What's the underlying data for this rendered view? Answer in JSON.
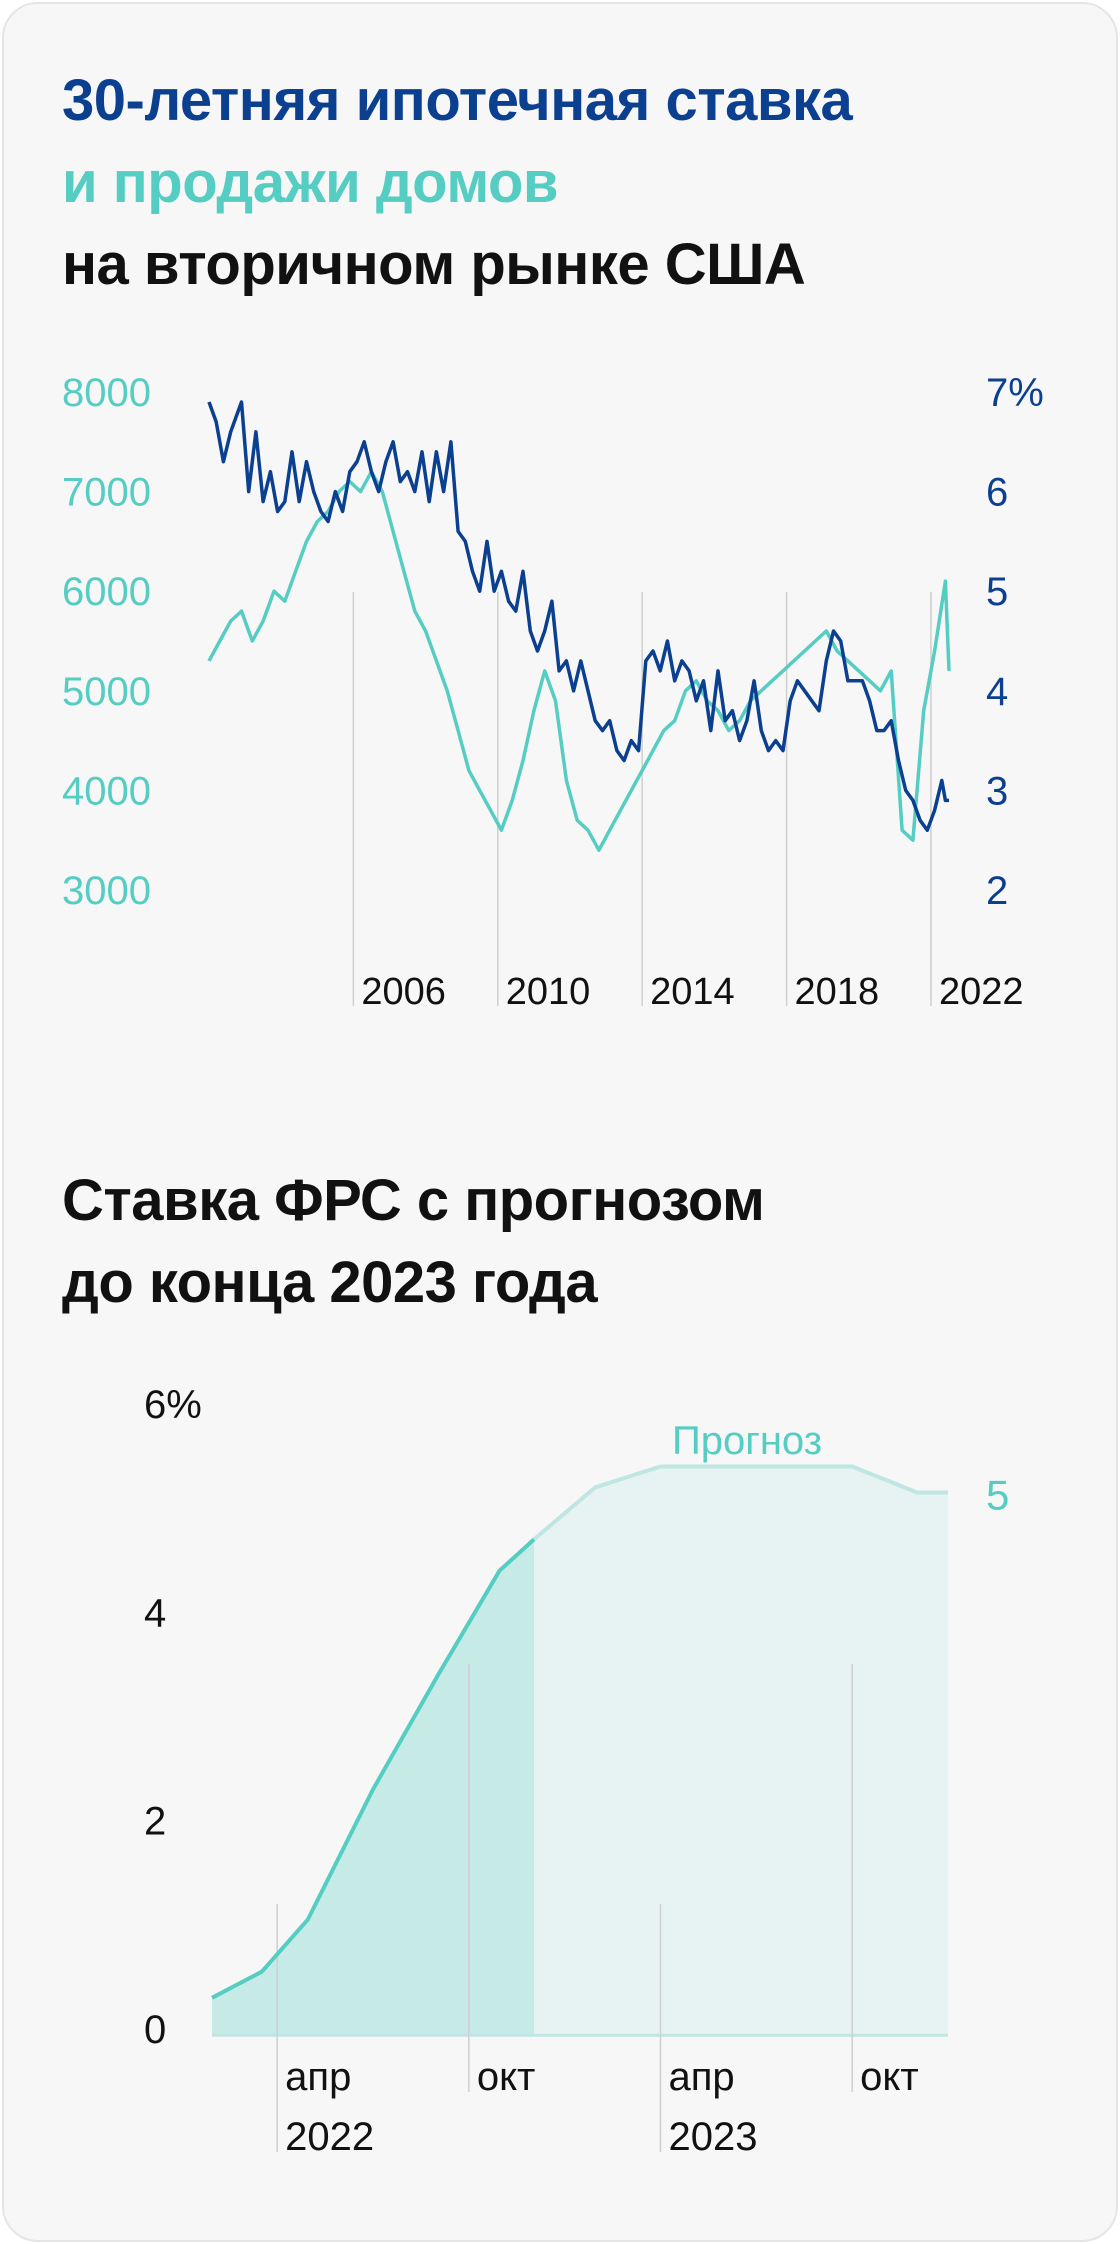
{
  "colors": {
    "card_bg": "#f7f7f7",
    "navy": "#0b3f8f",
    "teal": "#55cdc3",
    "teal_fill_actual": "#c6ebe7",
    "teal_fill_forecast": "#e6f3f2",
    "teal_line_forecast": "#bfe6e2",
    "black": "#111111",
    "grid": "#cfcfcf"
  },
  "chart1": {
    "title_line1": "30-летняя ипотечная ставка",
    "title_line2": "и продажи домов",
    "title_line3": "на вторичном рынке США"
  },
  "chart2": {
    "title_line1": "Ставка ФРС с прогнозом",
    "title_line2": "до конца 2023 года",
    "forecast_label": "Прогноз",
    "forecast_end_value_label": "5"
  },
  "chart_data": [
    {
      "type": "line",
      "title": "30-летняя ипотечная ставка и продажи домов на вторичном рынке США",
      "x_ticks": [
        "2006",
        "2010",
        "2014",
        "2018",
        "2022"
      ],
      "x_tick_values": [
        2005,
        2009,
        2013,
        2017,
        2021
      ],
      "xlim": [
        2001.0,
        2021.5
      ],
      "y_left_label": "",
      "y_left_ticks": [
        "8000",
        "7000",
        "6000",
        "5000",
        "4000",
        "3000"
      ],
      "y_left_tick_values": [
        8000,
        7000,
        6000,
        5000,
        4000,
        3000
      ],
      "y_left_lim": [
        3000,
        8000
      ],
      "y_right_ticks": [
        "7%",
        "6",
        "5",
        "4",
        "3",
        "2"
      ],
      "y_right_tick_values": [
        7,
        6,
        5,
        4,
        3,
        2
      ],
      "y_right_lim": [
        2,
        7
      ],
      "series": [
        {
          "name": "30-летняя ипотечная ставка",
          "axis": "right",
          "x": [
            2001.0,
            2001.2,
            2001.4,
            2001.6,
            2001.9,
            2002.1,
            2002.3,
            2002.5,
            2002.7,
            2002.9,
            2003.1,
            2003.3,
            2003.5,
            2003.7,
            2003.9,
            2004.1,
            2004.3,
            2004.5,
            2004.7,
            2004.9,
            2005.1,
            2005.3,
            2005.5,
            2005.7,
            2005.9,
            2006.1,
            2006.3,
            2006.5,
            2006.7,
            2006.9,
            2007.1,
            2007.3,
            2007.5,
            2007.7,
            2007.9,
            2008.1,
            2008.3,
            2008.5,
            2008.7,
            2008.9,
            2009.1,
            2009.3,
            2009.5,
            2009.7,
            2009.9,
            2010.1,
            2010.3,
            2010.5,
            2010.7,
            2010.9,
            2011.1,
            2011.3,
            2011.5,
            2011.7,
            2011.9,
            2012.1,
            2012.3,
            2012.5,
            2012.7,
            2012.9,
            2013.1,
            2013.3,
            2013.5,
            2013.7,
            2013.9,
            2014.1,
            2014.3,
            2014.5,
            2014.7,
            2014.9,
            2015.1,
            2015.3,
            2015.5,
            2015.7,
            2015.9,
            2016.1,
            2016.3,
            2016.5,
            2016.7,
            2016.9,
            2017.1,
            2017.3,
            2017.5,
            2017.7,
            2017.9,
            2018.1,
            2018.3,
            2018.5,
            2018.7,
            2018.9,
            2019.1,
            2019.3,
            2019.5,
            2019.7,
            2019.9,
            2020.1,
            2020.3,
            2020.5,
            2020.7,
            2020.9,
            2021.1,
            2021.3,
            2021.4,
            2021.5
          ],
          "values": [
            6.9,
            6.7,
            6.3,
            6.6,
            6.9,
            6.0,
            6.6,
            5.9,
            6.2,
            5.8,
            5.9,
            6.4,
            5.9,
            6.3,
            6.0,
            5.8,
            5.7,
            6.0,
            5.8,
            6.2,
            6.3,
            6.5,
            6.2,
            6.0,
            6.3,
            6.5,
            6.1,
            6.2,
            6.0,
            6.4,
            5.9,
            6.4,
            6.0,
            6.5,
            5.6,
            5.5,
            5.2,
            5.0,
            5.5,
            5.0,
            5.2,
            4.9,
            4.8,
            5.2,
            4.6,
            4.4,
            4.6,
            4.9,
            4.2,
            4.3,
            4.0,
            4.3,
            4.0,
            3.7,
            3.6,
            3.7,
            3.4,
            3.3,
            3.5,
            3.4,
            4.3,
            4.4,
            4.2,
            4.5,
            4.1,
            4.3,
            4.2,
            3.9,
            4.1,
            3.6,
            4.2,
            3.7,
            3.8,
            3.5,
            3.7,
            4.1,
            3.6,
            3.4,
            3.5,
            3.4,
            3.9,
            4.1,
            4.0,
            3.9,
            3.8,
            4.3,
            4.6,
            4.5,
            4.1,
            4.1,
            4.1,
            3.9,
            3.6,
            3.6,
            3.7,
            3.3,
            3.0,
            2.9,
            2.7,
            2.6,
            2.8,
            3.1,
            2.9,
            2.9
          ]
        },
        {
          "name": "Продажи домов на вторичном рынке",
          "axis": "left",
          "x": [
            2001.0,
            2001.3,
            2001.6,
            2001.9,
            2002.2,
            2002.5,
            2002.8,
            2003.1,
            2003.4,
            2003.7,
            2004.0,
            2004.3,
            2004.6,
            2004.9,
            2005.2,
            2005.5,
            2005.8,
            2006.1,
            2006.4,
            2006.7,
            2007.0,
            2007.3,
            2007.6,
            2007.9,
            2008.2,
            2008.5,
            2008.8,
            2009.1,
            2009.4,
            2009.7,
            2010.0,
            2010.3,
            2010.6,
            2010.9,
            2011.2,
            2011.5,
            2011.8,
            2012.1,
            2012.4,
            2012.7,
            2013.0,
            2013.3,
            2013.6,
            2013.9,
            2014.2,
            2014.5,
            2014.8,
            2015.1,
            2015.4,
            2015.7,
            2016.0,
            2016.3,
            2016.6,
            2016.9,
            2017.2,
            2017.5,
            2017.8,
            2018.1,
            2018.4,
            2018.7,
            2019.0,
            2019.3,
            2019.6,
            2019.9,
            2020.2,
            2020.5,
            2020.8,
            2021.1,
            2021.4,
            2021.5
          ],
          "values": [
            5300,
            5500,
            5700,
            5800,
            5500,
            5700,
            6000,
            5900,
            6200,
            6500,
            6700,
            6800,
            7000,
            7100,
            7000,
            7200,
            7000,
            6600,
            6200,
            5800,
            5600,
            5300,
            5000,
            4600,
            4200,
            4000,
            3800,
            3600,
            3900,
            4300,
            4800,
            5200,
            4900,
            4100,
            3700,
            3600,
            3400,
            3600,
            3800,
            4000,
            4200,
            4400,
            4600,
            4700,
            5000,
            5100,
            4900,
            4800,
            4600,
            4700,
            4900,
            5000,
            5100,
            5200,
            5300,
            5400,
            5500,
            5600,
            5400,
            5300,
            5200,
            5100,
            5000,
            5200,
            3600,
            3500,
            4800,
            5400,
            6100,
            5200
          ]
        }
      ]
    },
    {
      "type": "area",
      "title": "Ставка ФРС с прогнозом до конца 2023 года",
      "x_ticks": [
        "апр\n2022",
        "окт",
        "апр\n2023",
        "окт"
      ],
      "x_tick_values": [
        2022.25,
        2022.75,
        2023.25,
        2023.75
      ],
      "xlim": [
        2022.08,
        2024.0
      ],
      "ylabel": "",
      "y_ticks": [
        "6%",
        "4",
        "2",
        "0"
      ],
      "y_tick_values": [
        6,
        4,
        2,
        0
      ],
      "ylim": [
        0,
        6
      ],
      "forecast_start_x": 2022.92,
      "series": [
        {
          "name": "Ставка ФРС",
          "x": [
            2022.08,
            2022.21,
            2022.33,
            2022.5,
            2022.67,
            2022.83,
            2022.92
          ],
          "values": [
            0.3,
            0.55,
            1.05,
            2.3,
            3.4,
            4.4,
            4.7
          ]
        },
        {
          "name": "Прогноз",
          "x": [
            2022.92,
            2023.08,
            2023.25,
            2023.42,
            2023.58,
            2023.75,
            2023.92,
            2024.0
          ],
          "values": [
            4.7,
            5.2,
            5.4,
            5.4,
            5.4,
            5.4,
            5.15,
            5.15
          ]
        }
      ]
    }
  ]
}
